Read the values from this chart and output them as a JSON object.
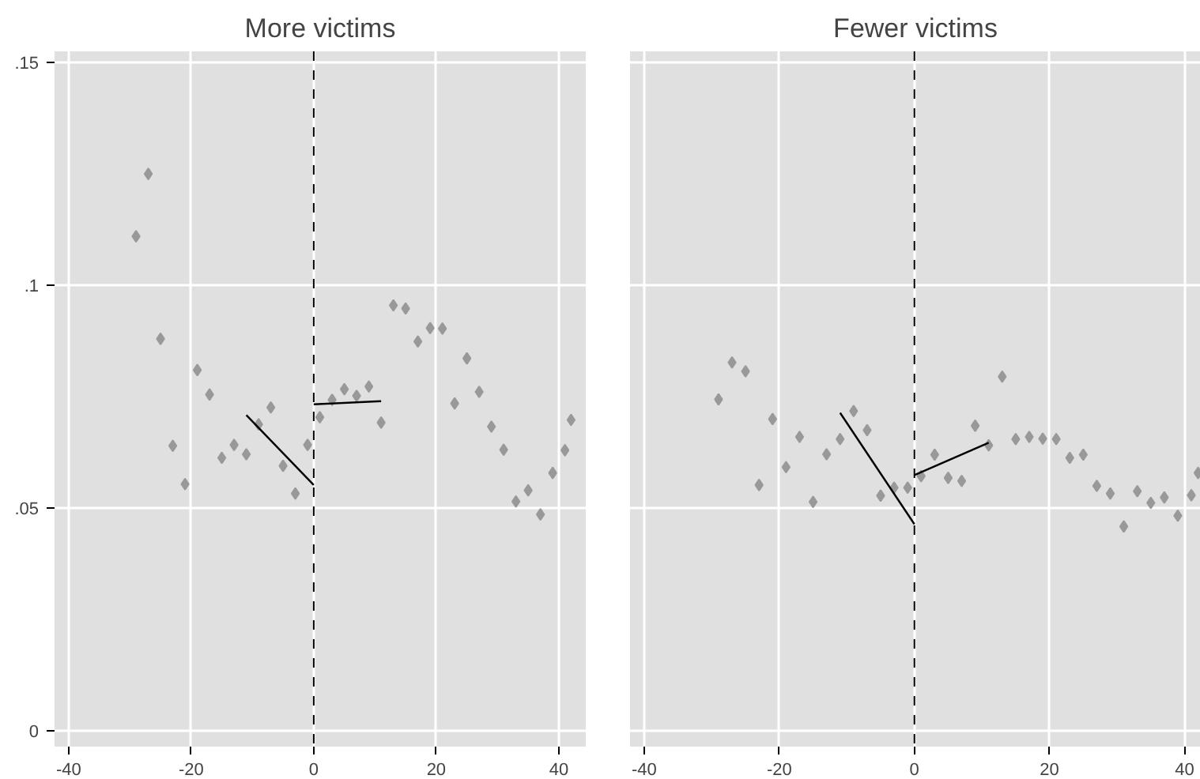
{
  "chart_data": [
    {
      "type": "scatter",
      "title": "More victims",
      "xlim": [
        -42.3,
        44.4
      ],
      "ylim": [
        -0.0035,
        0.1525
      ],
      "xticks": [
        -40,
        -20,
        0,
        20,
        40
      ],
      "yticks": [
        {
          "value": 0,
          "label": "0"
        },
        {
          "value": 0.05,
          "label": ".05"
        },
        {
          "value": 0.1,
          "label": ".1"
        },
        {
          "value": 0.15,
          "label": ".15"
        }
      ],
      "grid": true,
      "line_style": "solid",
      "ref_lines": [
        {
          "axis": "x",
          "value": 0,
          "color": "#000000",
          "line_style": "dashed"
        }
      ],
      "series": [
        {
          "marker": "diamond",
          "color": "#999999",
          "x": [
            -29,
            -27,
            -25,
            -23,
            -21,
            -19,
            -17,
            -15,
            -13,
            -11,
            -9,
            -7,
            -5,
            -3,
            -1,
            1,
            3,
            5,
            7,
            9,
            11,
            13,
            15,
            17,
            19,
            21,
            23,
            25,
            27,
            29,
            31,
            33,
            35,
            37,
            39,
            41,
            42
          ],
          "values": [
            0.111,
            0.125,
            0.088,
            0.064,
            0.0554,
            0.081,
            0.0755,
            0.0613,
            0.0642,
            0.0621,
            0.0688,
            0.0726,
            0.0595,
            0.0533,
            0.0642,
            0.0704,
            0.0743,
            0.0767,
            0.0752,
            0.0773,
            0.0692,
            0.0955,
            0.0948,
            0.0874,
            0.0904,
            0.0903,
            0.0735,
            0.0836,
            0.0761,
            0.0683,
            0.0631,
            0.0515,
            0.054,
            0.0486,
            0.0579,
            0.063,
            0.0698
          ]
        },
        {
          "type": "line",
          "marker": "none",
          "color": "#000000",
          "x": [
            -11,
            0
          ],
          "values": [
            0.0709,
            0.0552
          ]
        },
        {
          "type": "line",
          "marker": "none",
          "color": "#000000",
          "x": [
            0,
            11
          ],
          "values": [
            0.0733,
            0.074
          ]
        }
      ]
    },
    {
      "type": "scatter",
      "title": "Fewer victims",
      "xlim": [
        -42.1,
        42.4
      ],
      "ylim": [
        -0.0035,
        0.1525
      ],
      "xticks": [
        -40,
        -20,
        0,
        20,
        40
      ],
      "grid": true,
      "line_style": "solid",
      "tick_labels": "x",
      "yticks": [
        {
          "value": 0,
          "label": null
        },
        {
          "value": 0.05,
          "label": null
        },
        {
          "value": 0.1,
          "label": null
        },
        {
          "value": 0.15,
          "label": null
        }
      ],
      "ref_lines": [
        {
          "axis": "x",
          "value": 0,
          "color": "#000000",
          "line_style": "dashed"
        }
      ],
      "series": [
        {
          "marker": "diamond",
          "color": "#999999",
          "x": [
            -29,
            -27,
            -25,
            -23,
            -21,
            -19,
            -17,
            -15,
            -13,
            -11,
            -9,
            -7,
            -5,
            -3,
            -1,
            1,
            3,
            5,
            7,
            9,
            11,
            13,
            15,
            17,
            19,
            21,
            23,
            25,
            27,
            29,
            31,
            33,
            35,
            37,
            39,
            41,
            42
          ],
          "values": [
            0.0744,
            0.0827,
            0.0807,
            0.0552,
            0.07,
            0.0592,
            0.066,
            0.0514,
            0.0621,
            0.0655,
            0.0718,
            0.0675,
            0.0528,
            0.0546,
            0.0546,
            0.0572,
            0.062,
            0.0568,
            0.0561,
            0.0685,
            0.0641,
            0.0795,
            0.0655,
            0.066,
            0.0656,
            0.0655,
            0.0613,
            0.062,
            0.055,
            0.0533,
            0.0459,
            0.0538,
            0.0512,
            0.0524,
            0.0483,
            0.0529,
            0.0579
          ]
        },
        {
          "type": "line",
          "marker": "none",
          "color": "#000000",
          "x": [
            -11,
            0
          ],
          "values": [
            0.0714,
            0.0464
          ]
        },
        {
          "type": "line",
          "marker": "none",
          "color": "#000000",
          "x": [
            0,
            11
          ],
          "values": [
            0.0574,
            0.0647
          ]
        }
      ]
    }
  ]
}
